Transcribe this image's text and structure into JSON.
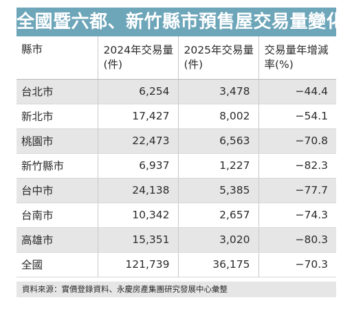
{
  "title": "全國暨六都、新竹縣市預售屋交易量變化",
  "table": {
    "headers": [
      "縣市",
      "2024年交易量(件)",
      "2025年交易量(件)",
      "交易量年增減率(%)"
    ],
    "rows": [
      [
        "台北市",
        "6,254",
        "3,478",
        "−44.4"
      ],
      [
        "新北市",
        "17,427",
        "8,002",
        "−54.1"
      ],
      [
        "桃園市",
        "22,473",
        "6,563",
        "−70.8"
      ],
      [
        "新竹縣市",
        "6,937",
        "1,227",
        "−82.3"
      ],
      [
        "台中市",
        "24,138",
        "5,385",
        "−77.7"
      ],
      [
        "台南市",
        "10,342",
        "2,657",
        "−74.3"
      ],
      [
        "高雄市",
        "15,351",
        "3,020",
        "−80.3"
      ],
      [
        "全國",
        "121,739",
        "36,175",
        "−70.3"
      ]
    ]
  },
  "source": "資料來源：實價登錄資料、永慶房產集團研究發展中心彙整",
  "colors": {
    "title_bg": "#6da5b9",
    "stripe": "#e6e6e6"
  }
}
